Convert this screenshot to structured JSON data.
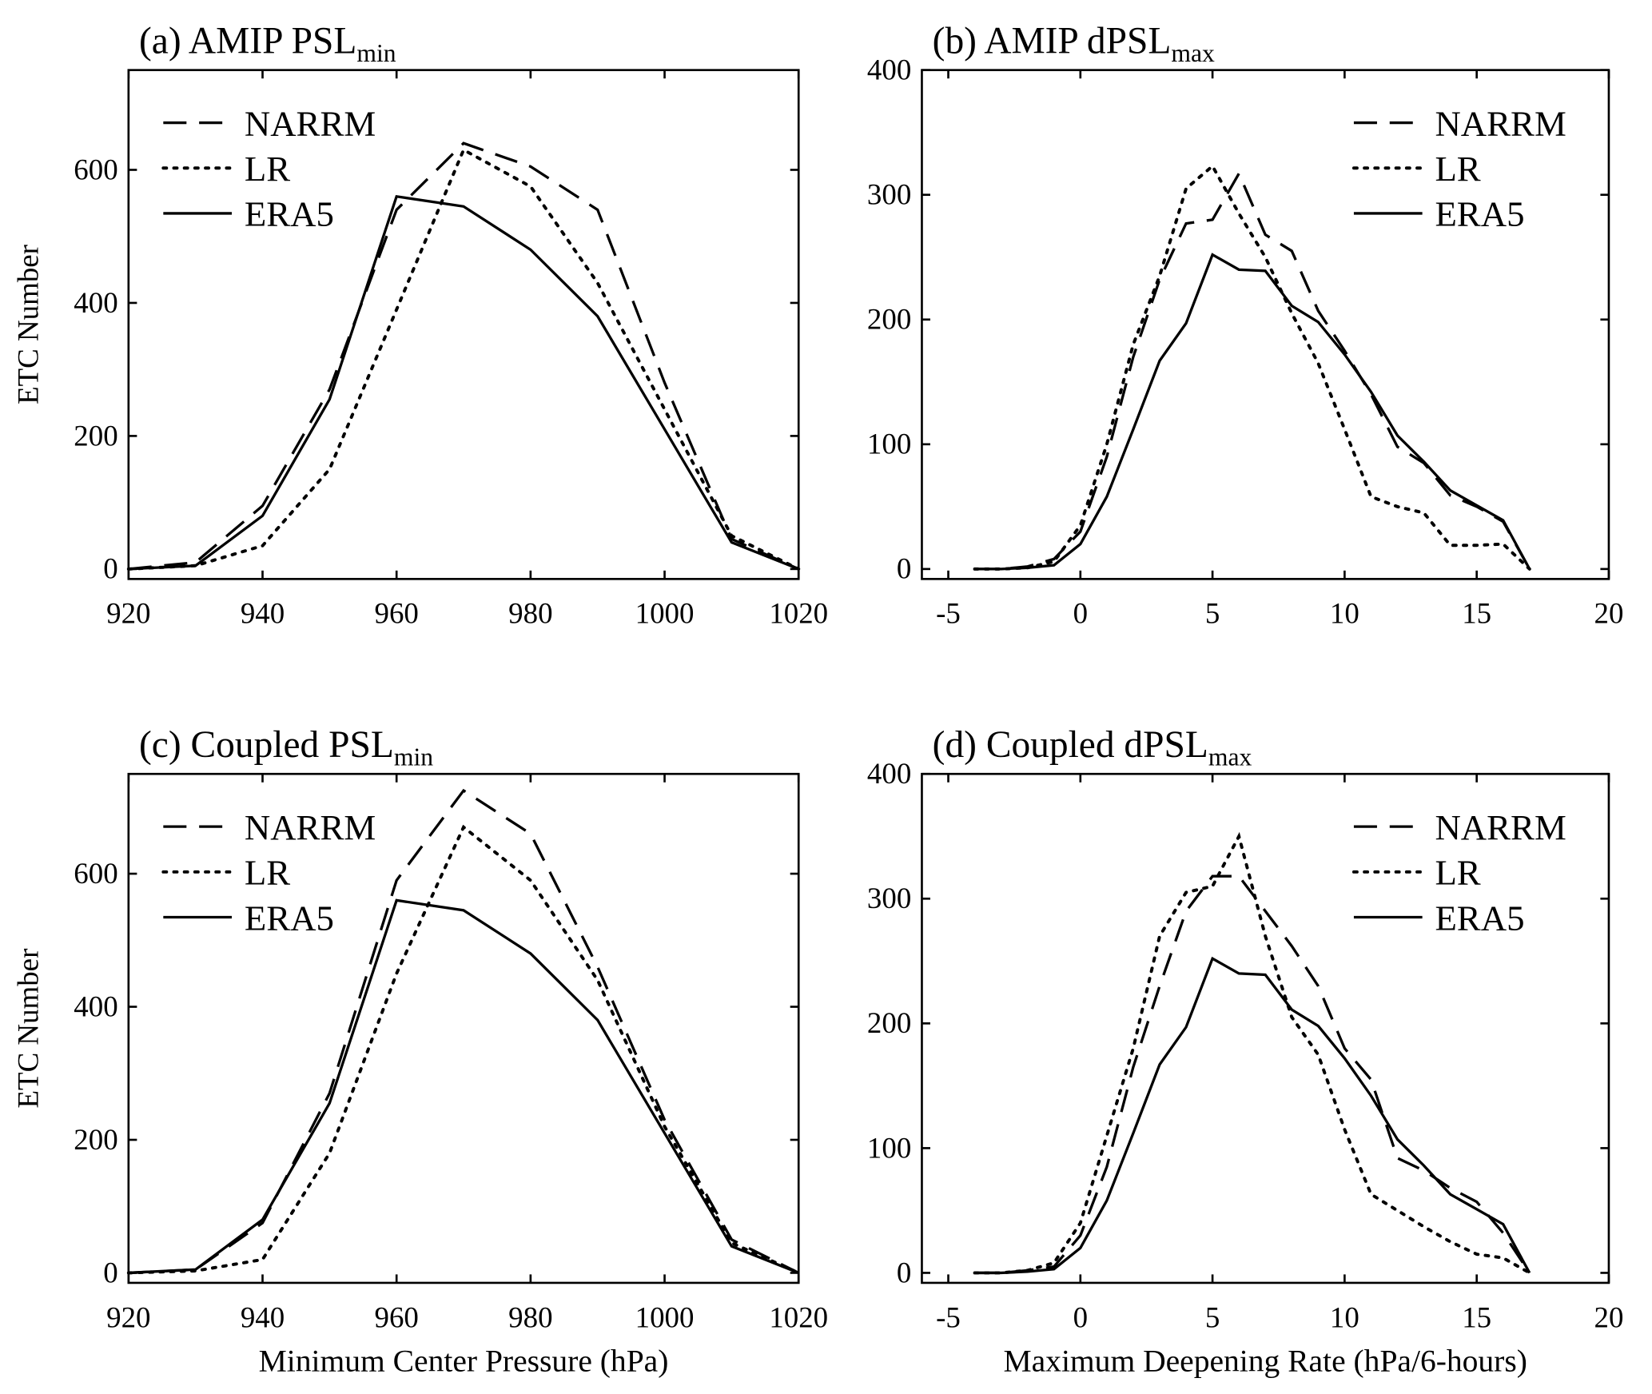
{
  "chart_data": [
    {
      "type": "line",
      "title": "(a) AMIP PSL",
      "title_subscript": "min",
      "ylabel": "ETC Number",
      "x": [
        920,
        930,
        940,
        950,
        960,
        970,
        980,
        990,
        1000,
        1010,
        1020
      ],
      "xlim": [
        920,
        1020
      ],
      "xticks": [
        920,
        940,
        960,
        980,
        1000,
        1020
      ],
      "ylim": [
        -15,
        750
      ],
      "yticks": [
        0,
        200,
        400,
        600
      ],
      "legend": "upper left",
      "series": [
        {
          "name": "NARRM",
          "color": "#000000",
          "linestyle": "dashed",
          "values": [
            0,
            10,
            95,
            270,
            540,
            640,
            605,
            540,
            280,
            45,
            0
          ]
        },
        {
          "name": "LR",
          "color": "#000000",
          "linestyle": "dotted",
          "values": [
            0,
            5,
            35,
            150,
            390,
            630,
            575,
            430,
            240,
            50,
            0
          ]
        },
        {
          "name": "ERA5",
          "color": "#000000",
          "linestyle": "solid",
          "values": [
            0,
            5,
            80,
            255,
            560,
            545,
            480,
            380,
            210,
            40,
            0
          ]
        }
      ]
    },
    {
      "type": "line",
      "title": "(b) AMIP  dPSL",
      "title_subscript": "max",
      "x": [
        -4,
        -3,
        -2,
        -1,
        0,
        1,
        2,
        3,
        4,
        5,
        6,
        7,
        8,
        9,
        10,
        11,
        12,
        13,
        14,
        15,
        16,
        17
      ],
      "xlim": [
        -6,
        20
      ],
      "xticks": [
        -5,
        0,
        5,
        10,
        15,
        20
      ],
      "ylim": [
        -8,
        400
      ],
      "yticks": [
        0,
        100,
        200,
        300,
        400
      ],
      "legend": "upper right",
      "series": [
        {
          "name": "NARRM",
          "color": "#000000",
          "linestyle": "dashed",
          "values": [
            0,
            0,
            2,
            8,
            30,
            90,
            170,
            232,
            277,
            280,
            317,
            268,
            255,
            207,
            175,
            140,
            98,
            85,
            59,
            50,
            38,
            0
          ]
        },
        {
          "name": "LR",
          "color": "#000000",
          "linestyle": "dotted",
          "values": [
            0,
            0,
            1,
            6,
            35,
            100,
            180,
            235,
            305,
            323,
            285,
            250,
            205,
            165,
            112,
            58,
            50,
            45,
            19,
            19,
            20,
            0
          ]
        },
        {
          "name": "ERA5",
          "color": "#000000",
          "linestyle": "solid",
          "values": [
            0,
            0,
            1,
            3,
            20,
            58,
            112,
            167,
            197,
            252,
            240,
            239,
            211,
            198,
            172,
            142,
            107,
            86,
            63,
            51,
            39,
            0
          ]
        }
      ]
    },
    {
      "type": "line",
      "title": "(c) Coupled PSL",
      "title_subscript": "min",
      "ylabel": "ETC Number",
      "xlabel": "Minimum Center Pressure (hPa)",
      "x": [
        920,
        930,
        940,
        950,
        960,
        970,
        980,
        990,
        1000,
        1010,
        1020
      ],
      "xlim": [
        920,
        1020
      ],
      "xticks": [
        920,
        940,
        960,
        980,
        1000,
        1020
      ],
      "ylim": [
        -15,
        750
      ],
      "yticks": [
        0,
        200,
        400,
        600
      ],
      "legend": "upper left",
      "series": [
        {
          "name": "NARRM",
          "color": "#000000",
          "linestyle": "dashed",
          "values": [
            0,
            5,
            75,
            270,
            590,
            725,
            660,
            460,
            230,
            50,
            0
          ]
        },
        {
          "name": "LR",
          "color": "#000000",
          "linestyle": "dotted",
          "values": [
            0,
            3,
            20,
            180,
            450,
            670,
            590,
            440,
            220,
            45,
            0
          ]
        },
        {
          "name": "ERA5",
          "color": "#000000",
          "linestyle": "solid",
          "values": [
            0,
            5,
            80,
            255,
            560,
            545,
            480,
            380,
            210,
            40,
            0
          ]
        }
      ]
    },
    {
      "type": "line",
      "title": "(d) Coupled  dPSL",
      "title_subscript": "max",
      "xlabel": "Maximum Deepening Rate (hPa/6-hours)",
      "x": [
        -4,
        -3,
        -2,
        -1,
        0,
        1,
        2,
        3,
        4,
        5,
        6,
        7,
        8,
        9,
        10,
        11,
        12,
        13,
        14,
        15,
        16,
        17
      ],
      "xlim": [
        -6,
        20
      ],
      "xticks": [
        -5,
        0,
        5,
        10,
        15,
        20
      ],
      "ylim": [
        -8,
        400
      ],
      "yticks": [
        0,
        100,
        200,
        300,
        400
      ],
      "legend": "upper right",
      "series": [
        {
          "name": "NARRM",
          "color": "#000000",
          "linestyle": "dashed",
          "values": [
            0,
            0,
            2,
            5,
            30,
            85,
            165,
            230,
            290,
            318,
            318,
            290,
            262,
            230,
            180,
            155,
            92,
            82,
            68,
            57,
            32,
            0
          ]
        },
        {
          "name": "LR",
          "color": "#000000",
          "linestyle": "dotted",
          "values": [
            0,
            0,
            2,
            8,
            40,
            110,
            180,
            270,
            305,
            310,
            350,
            270,
            205,
            175,
            115,
            63,
            50,
            37,
            25,
            15,
            12,
            0
          ]
        },
        {
          "name": "ERA5",
          "color": "#000000",
          "linestyle": "solid",
          "values": [
            0,
            0,
            1,
            3,
            20,
            58,
            112,
            167,
            197,
            252,
            240,
            239,
            211,
            198,
            172,
            142,
            107,
            86,
            63,
            51,
            39,
            0
          ]
        }
      ]
    }
  ]
}
